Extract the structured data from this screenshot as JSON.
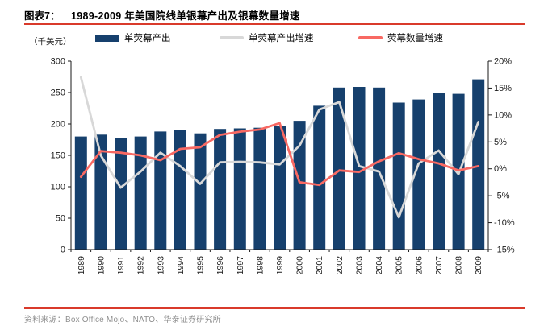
{
  "figure": {
    "label": "图表7：",
    "title": "1989-2009 年美国院线单银幕产出及银幕数量增速"
  },
  "chart_data": {
    "type": "bar",
    "categories": [
      "1989",
      "1990",
      "1991",
      "1992",
      "1993",
      "1994",
      "1995",
      "1996",
      "1997",
      "1998",
      "1999",
      "2000",
      "2001",
      "2002",
      "2003",
      "2004",
      "2005",
      "2006",
      "2007",
      "2008",
      "2009"
    ],
    "series": [
      {
        "name": "单荧幕产出",
        "type": "bar",
        "axis": "left",
        "color": "#16406D",
        "values": [
          180,
          183,
          177,
          180,
          188,
          190,
          185,
          192,
          193,
          194,
          197,
          205,
          229,
          258,
          259,
          258,
          234,
          239,
          249,
          248,
          271
        ]
      },
      {
        "name": "单荧幕产出增速",
        "type": "line",
        "axis": "right",
        "color": "#D8D8D8",
        "values": [
          17,
          2.5,
          -3.5,
          -0.5,
          3,
          0.5,
          -2.8,
          1.2,
          1.3,
          1.2,
          0.8,
          4.3,
          11,
          12.4,
          0.5,
          -0.5,
          -9,
          1,
          3.4,
          -1,
          8.7
        ]
      },
      {
        "name": "荧幕数量增速",
        "type": "line",
        "axis": "right",
        "color": "#F86963",
        "values": [
          -1.5,
          3.3,
          3.0,
          2.5,
          1.6,
          3.7,
          4.0,
          6.3,
          6.9,
          7.3,
          8.5,
          -2.5,
          -3.0,
          -0.3,
          -0.6,
          1.4,
          2.9,
          1.8,
          1.0,
          -0.3,
          0.5
        ]
      }
    ],
    "left_axis": {
      "label": "（千美元）",
      "min": 0,
      "max": 300,
      "step": 50
    },
    "right_axis": {
      "min": -15,
      "max": 20,
      "step": 5,
      "suffix": "%"
    },
    "grid": false,
    "legend_position": "top"
  },
  "source": {
    "label": "资料来源：",
    "text": "Box Office Mojo、NATO、华泰证券研究所"
  },
  "colors": {
    "bar": "#16406D",
    "line_gray": "#D8D8D8",
    "line_red": "#F86963",
    "rule_red": "#D93A2B",
    "axis_line": "#1a1a1a"
  }
}
